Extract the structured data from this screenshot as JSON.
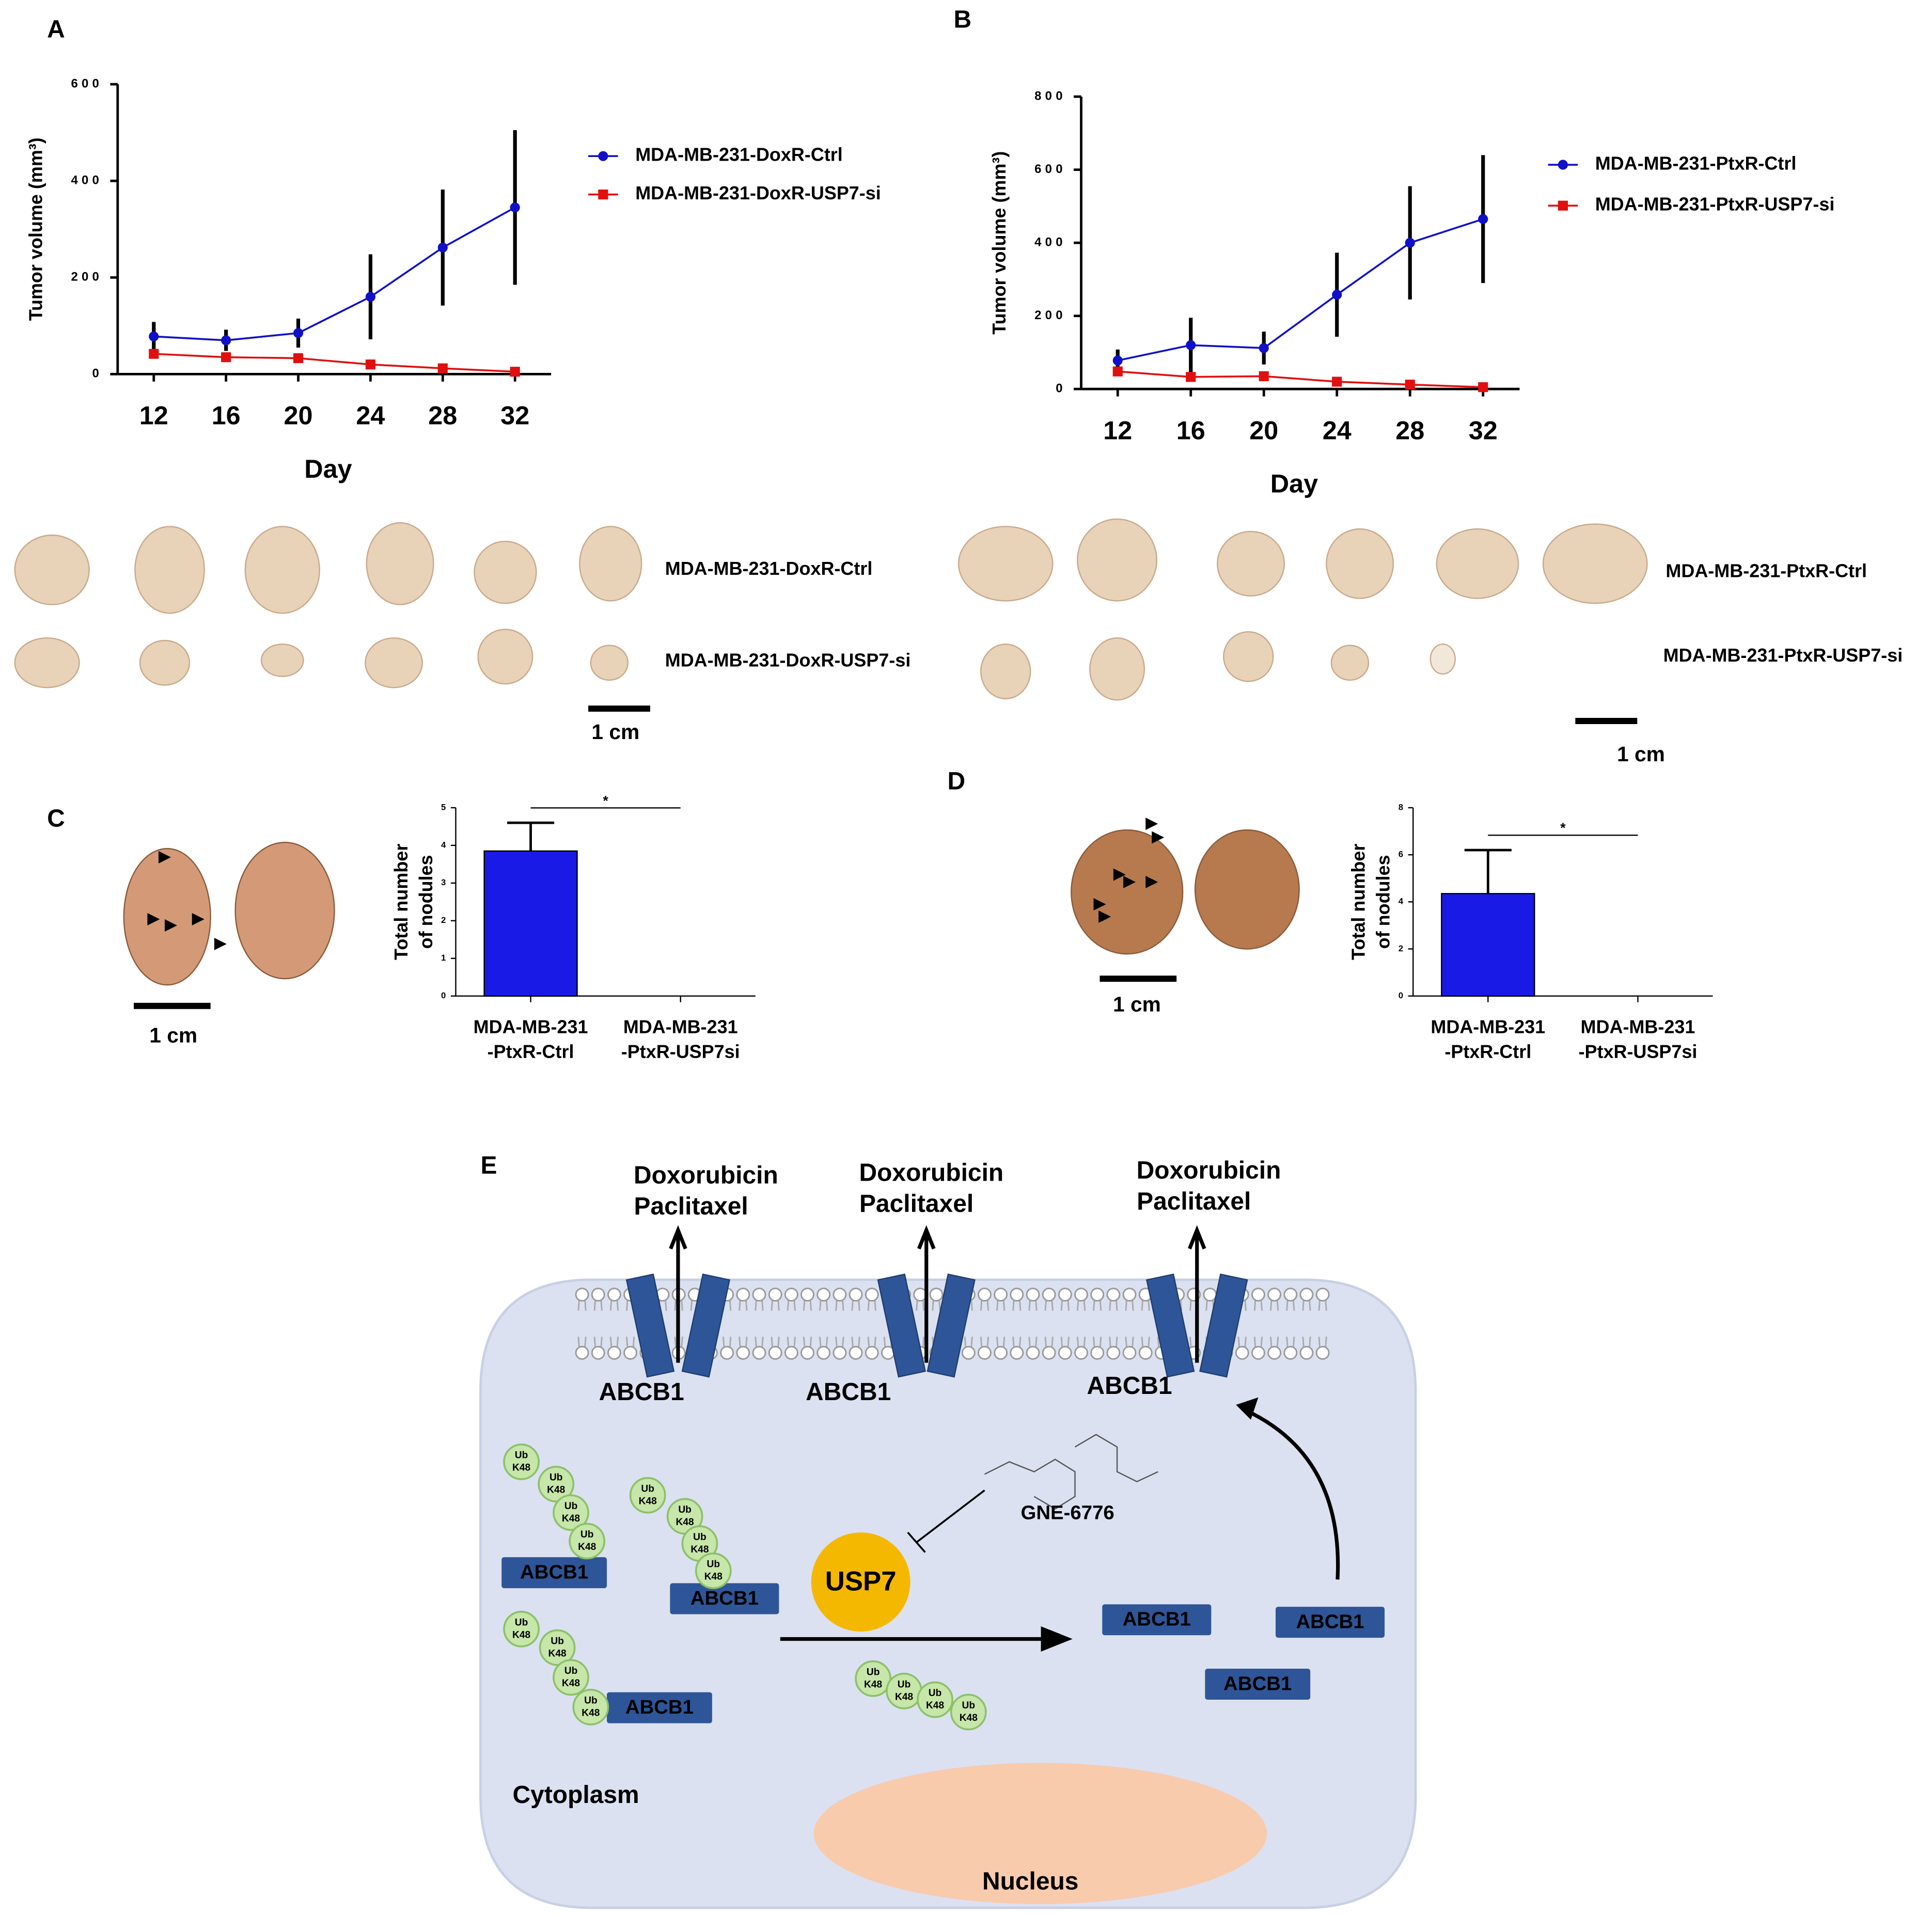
{
  "panel_labels": [
    "A",
    "B",
    "C",
    "D",
    "E"
  ],
  "chart_data": [
    {
      "type": "line",
      "ylabel": "Tumor volume (mm³)",
      "xlabel": "Day",
      "x": [
        12,
        16,
        20,
        24,
        28,
        32
      ],
      "xlim": [
        10,
        34
      ],
      "xticks": [
        12,
        16,
        20,
        24,
        28,
        32
      ],
      "ylim": [
        0,
        600
      ],
      "yticks": [
        0,
        200,
        400,
        600
      ],
      "series": [
        {
          "name": "MDA-MB-231-DoxR-Ctrl",
          "color": "#1010c8",
          "marker": "circle",
          "values": [
            78,
            70,
            85,
            160,
            262,
            345
          ],
          "errors": [
            30,
            22,
            30,
            88,
            120,
            160
          ]
        },
        {
          "name": "MDA-MB-231-DoxR-USP7-si",
          "color": "#e01010",
          "marker": "square",
          "values": [
            42,
            35,
            33,
            20,
            12,
            5
          ],
          "errors": [
            8,
            6,
            6,
            5,
            5,
            4
          ]
        }
      ]
    },
    {
      "type": "line",
      "ylabel": "Tumor volume (mm³)",
      "xlabel": "Day",
      "x": [
        12,
        16,
        20,
        24,
        28,
        32
      ],
      "xlim": [
        10,
        34
      ],
      "xticks": [
        12,
        16,
        20,
        24,
        28,
        32
      ],
      "ylim": [
        0,
        800
      ],
      "yticks": [
        0,
        200,
        400,
        600,
        800
      ],
      "series": [
        {
          "name": "MDA-MB-231-PtxR-Ctrl",
          "color": "#1010c8",
          "marker": "circle",
          "values": [
            78,
            120,
            112,
            258,
            400,
            465
          ],
          "errors": [
            30,
            75,
            45,
            115,
            155,
            175
          ]
        },
        {
          "name": "MDA-MB-231-PtxR-USP7-si",
          "color": "#e01010",
          "marker": "square",
          "values": [
            48,
            33,
            35,
            20,
            12,
            5
          ],
          "errors": [
            8,
            6,
            6,
            5,
            5,
            4
          ]
        }
      ]
    },
    {
      "type": "bar",
      "ylabel": [
        "Total number",
        "of nodules"
      ],
      "categories": [
        [
          "MDA-MB-231",
          "-PtxR-Ctrl"
        ],
        [
          "MDA-MB-231",
          "-PtxR-USP7si"
        ]
      ],
      "values": [
        3.85,
        0
      ],
      "errors": [
        0.75,
        0
      ],
      "color": "#1a1ae6",
      "ylim": [
        0,
        5
      ],
      "yticks": [
        0,
        1,
        2,
        3,
        4,
        5
      ],
      "annotation": "*"
    },
    {
      "type": "bar",
      "ylabel": [
        "Total number",
        "of nodules"
      ],
      "categories": [
        [
          "MDA-MB-231",
          "-PtxR-Ctrl"
        ],
        [
          "MDA-MB-231",
          "-PtxR-USP7si"
        ]
      ],
      "values": [
        4.35,
        0
      ],
      "errors": [
        1.85,
        0
      ],
      "color": "#1a1ae6",
      "ylim": [
        0,
        8
      ],
      "yticks": [
        0,
        2,
        4,
        6,
        8
      ],
      "annotation": "*"
    }
  ],
  "photos": {
    "A": {
      "labels": [
        "MDA-MB-231-DoxR-Ctrl",
        "MDA-MB-231-DoxR-USP7-si"
      ],
      "scale": "1 cm"
    },
    "B": {
      "labels": [
        "MDA-MB-231-PtxR-Ctrl",
        "MDA-MB-231-PtxR-USP7-si"
      ],
      "scale": "1 cm"
    },
    "C": {
      "scale": "1 cm"
    },
    "D": {
      "scale": "1 cm"
    }
  },
  "diagram": {
    "drug": [
      "Doxorubicin",
      "Paclitaxel"
    ],
    "transporter": "ABCB1",
    "ubiquitin": [
      "Ub",
      "K48"
    ],
    "enzyme": "USP7",
    "inhibitor": "GNE-6776",
    "compartments": [
      "Cytoplasm",
      "Nucleus"
    ]
  }
}
